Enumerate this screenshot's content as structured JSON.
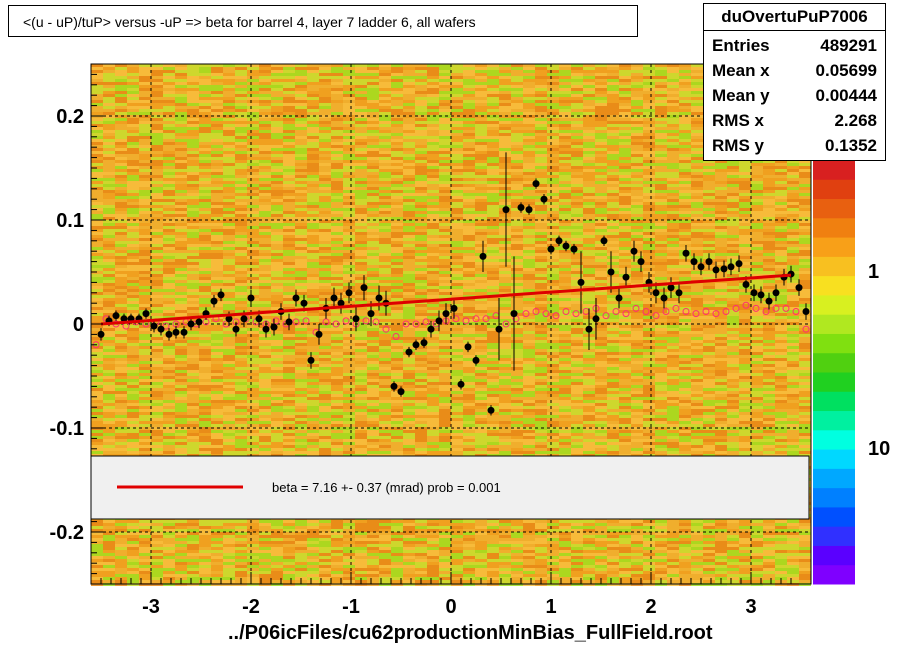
{
  "title": "<(u - uP)/tuP> versus  -uP => beta for barrel 4, layer 7 ladder 6, all wafers",
  "footer": "../P06icFiles/cu62productionMinBias_FullField.root",
  "stats": {
    "name": "duOvertuPuP7006",
    "rows": [
      {
        "key": "Entries",
        "value": "489291"
      },
      {
        "key": "Mean x",
        "value": "0.05699"
      },
      {
        "key": "Mean y",
        "value": "0.00444"
      },
      {
        "key": "RMS x",
        "value": "2.268"
      },
      {
        "key": "RMS y",
        "value": "0.1352"
      }
    ]
  },
  "legend": {
    "text": "beta =    7.16 +-  0.37 (mrad) prob = 0.001",
    "line_color": "#e00000"
  },
  "colors": {
    "heat_orange": "#f0a020",
    "heat_light_orange": "#f8c040",
    "heat_green": "#a0e020",
    "points": "#000000",
    "profile_markers": "#ff3070",
    "fit_line": "#dd0000"
  },
  "chart_data": {
    "type": "scatter",
    "xlim": [
      -3.6,
      3.6
    ],
    "ylim": [
      -0.25,
      0.25
    ],
    "x_ticks": [
      -3,
      -2,
      -1,
      0,
      1,
      2,
      3
    ],
    "x_tick_labels": [
      "-3",
      "-2",
      "-1",
      "0",
      "1",
      "2",
      "3"
    ],
    "y_ticks": [
      -0.2,
      -0.1,
      0,
      0.1,
      0.2
    ],
    "y_tick_labels": [
      "-0.2",
      "-0.1",
      "0",
      "0.1",
      "0.2"
    ],
    "z_ticks": [
      1,
      10
    ],
    "z_tick_labels": [
      "1",
      "10"
    ],
    "grid": true,
    "fit_line": {
      "x": [
        -3.5,
        3.4
      ],
      "y": [
        0.0,
        0.047
      ]
    },
    "points": [
      {
        "x": -3.5,
        "y": -0.01,
        "e": 0.006
      },
      {
        "x": -3.42,
        "y": 0.003,
        "e": 0.005
      },
      {
        "x": -3.35,
        "y": 0.008,
        "e": 0.005
      },
      {
        "x": -3.27,
        "y": 0.005,
        "e": 0.005
      },
      {
        "x": -3.2,
        "y": 0.005,
        "e": 0.005
      },
      {
        "x": -3.12,
        "y": 0.005,
        "e": 0.005
      },
      {
        "x": -3.05,
        "y": 0.01,
        "e": 0.005
      },
      {
        "x": -2.97,
        "y": -0.002,
        "e": 0.006
      },
      {
        "x": -2.9,
        "y": -0.005,
        "e": 0.006
      },
      {
        "x": -2.82,
        "y": -0.01,
        "e": 0.006
      },
      {
        "x": -2.75,
        "y": -0.008,
        "e": 0.006
      },
      {
        "x": -2.67,
        "y": -0.008,
        "e": 0.006
      },
      {
        "x": -2.6,
        "y": 0.0,
        "e": 0.006
      },
      {
        "x": -2.52,
        "y": 0.002,
        "e": 0.006
      },
      {
        "x": -2.45,
        "y": 0.01,
        "e": 0.006
      },
      {
        "x": -2.37,
        "y": 0.022,
        "e": 0.006
      },
      {
        "x": -2.3,
        "y": 0.028,
        "e": 0.006
      },
      {
        "x": -2.22,
        "y": 0.005,
        "e": 0.007
      },
      {
        "x": -2.15,
        "y": -0.005,
        "e": 0.007
      },
      {
        "x": -2.07,
        "y": 0.005,
        "e": 0.008
      },
      {
        "x": -2.0,
        "y": 0.025,
        "e": 0.008
      },
      {
        "x": -1.92,
        "y": 0.005,
        "e": 0.008
      },
      {
        "x": -1.85,
        "y": -0.005,
        "e": 0.008
      },
      {
        "x": -1.77,
        "y": -0.003,
        "e": 0.008
      },
      {
        "x": -1.7,
        "y": 0.012,
        "e": 0.008
      },
      {
        "x": -1.62,
        "y": 0.002,
        "e": 0.008
      },
      {
        "x": -1.55,
        "y": 0.025,
        "e": 0.008
      },
      {
        "x": -1.47,
        "y": 0.02,
        "e": 0.008
      },
      {
        "x": -1.4,
        "y": -0.035,
        "e": 0.008
      },
      {
        "x": -1.32,
        "y": -0.01,
        "e": 0.01
      },
      {
        "x": -1.25,
        "y": 0.015,
        "e": 0.01
      },
      {
        "x": -1.17,
        "y": 0.025,
        "e": 0.01
      },
      {
        "x": -1.1,
        "y": 0.02,
        "e": 0.01
      },
      {
        "x": -1.02,
        "y": 0.03,
        "e": 0.01
      },
      {
        "x": -0.95,
        "y": 0.005,
        "e": 0.012
      },
      {
        "x": -0.87,
        "y": 0.035,
        "e": 0.012
      },
      {
        "x": -0.8,
        "y": 0.01,
        "e": 0.012
      },
      {
        "x": -0.72,
        "y": 0.025,
        "e": 0.012
      },
      {
        "x": -0.65,
        "y": 0.02,
        "e": 0.012
      },
      {
        "x": -0.57,
        "y": -0.06,
        "e": 0.005
      },
      {
        "x": -0.5,
        "y": -0.065,
        "e": 0.005
      },
      {
        "x": -0.42,
        "y": -0.027,
        "e": 0.005
      },
      {
        "x": -0.35,
        "y": -0.02,
        "e": 0.005
      },
      {
        "x": -0.27,
        "y": -0.018,
        "e": 0.005
      },
      {
        "x": -0.2,
        "y": -0.005,
        "e": 0.008
      },
      {
        "x": -0.12,
        "y": 0.003,
        "e": 0.01
      },
      {
        "x": -0.05,
        "y": 0.01,
        "e": 0.01
      },
      {
        "x": 0.03,
        "y": 0.015,
        "e": 0.01
      },
      {
        "x": 0.1,
        "y": -0.058,
        "e": 0.005
      },
      {
        "x": 0.17,
        "y": -0.022,
        "e": 0.005
      },
      {
        "x": 0.25,
        "y": -0.035,
        "e": 0.005
      },
      {
        "x": 0.32,
        "y": 0.065,
        "e": 0.015
      },
      {
        "x": 0.4,
        "y": -0.083,
        "e": 0.005
      },
      {
        "x": 0.48,
        "y": -0.005,
        "e": 0.03
      },
      {
        "x": 0.55,
        "y": 0.11,
        "e": 0.055
      },
      {
        "x": 0.63,
        "y": 0.01,
        "e": 0.055
      },
      {
        "x": 0.7,
        "y": 0.112,
        "e": 0.005
      },
      {
        "x": 0.78,
        "y": 0.11,
        "e": 0.005
      },
      {
        "x": 0.85,
        "y": 0.135,
        "e": 0.005
      },
      {
        "x": 0.93,
        "y": 0.12,
        "e": 0.005
      },
      {
        "x": 1.0,
        "y": 0.072,
        "e": 0.005
      },
      {
        "x": 1.08,
        "y": 0.08,
        "e": 0.005
      },
      {
        "x": 1.15,
        "y": 0.075,
        "e": 0.005
      },
      {
        "x": 1.23,
        "y": 0.072,
        "e": 0.005
      },
      {
        "x": 1.3,
        "y": 0.04,
        "e": 0.03
      },
      {
        "x": 1.38,
        "y": -0.005,
        "e": 0.02
      },
      {
        "x": 1.45,
        "y": 0.005,
        "e": 0.02
      },
      {
        "x": 1.53,
        "y": 0.08,
        "e": 0.005
      },
      {
        "x": 1.6,
        "y": 0.05,
        "e": 0.02
      },
      {
        "x": 1.68,
        "y": 0.025,
        "e": 0.01
      },
      {
        "x": 1.75,
        "y": 0.045,
        "e": 0.01
      },
      {
        "x": 1.83,
        "y": 0.07,
        "e": 0.01
      },
      {
        "x": 1.9,
        "y": 0.06,
        "e": 0.01
      },
      {
        "x": 1.98,
        "y": 0.04,
        "e": 0.01
      },
      {
        "x": 2.05,
        "y": 0.03,
        "e": 0.01
      },
      {
        "x": 2.13,
        "y": 0.025,
        "e": 0.01
      },
      {
        "x": 2.2,
        "y": 0.035,
        "e": 0.01
      },
      {
        "x": 2.28,
        "y": 0.03,
        "e": 0.01
      },
      {
        "x": 2.35,
        "y": 0.068,
        "e": 0.008
      },
      {
        "x": 2.43,
        "y": 0.06,
        "e": 0.008
      },
      {
        "x": 2.5,
        "y": 0.055,
        "e": 0.008
      },
      {
        "x": 2.58,
        "y": 0.06,
        "e": 0.008
      },
      {
        "x": 2.65,
        "y": 0.052,
        "e": 0.008
      },
      {
        "x": 2.73,
        "y": 0.053,
        "e": 0.008
      },
      {
        "x": 2.8,
        "y": 0.055,
        "e": 0.008
      },
      {
        "x": 2.88,
        "y": 0.058,
        "e": 0.008
      },
      {
        "x": 2.95,
        "y": 0.038,
        "e": 0.008
      },
      {
        "x": 3.03,
        "y": 0.03,
        "e": 0.008
      },
      {
        "x": 3.1,
        "y": 0.028,
        "e": 0.008
      },
      {
        "x": 3.18,
        "y": 0.022,
        "e": 0.008
      },
      {
        "x": 3.25,
        "y": 0.03,
        "e": 0.008
      },
      {
        "x": 3.33,
        "y": 0.045,
        "e": 0.008
      },
      {
        "x": 3.4,
        "y": 0.048,
        "e": 0.008
      },
      {
        "x": 3.48,
        "y": 0.035,
        "e": 0.008
      },
      {
        "x": 3.55,
        "y": 0.012,
        "e": 0.008
      }
    ],
    "profile_markers": [
      {
        "x": -3.55,
        "y": -0.02
      },
      {
        "x": -3.45,
        "y": 0.005
      },
      {
        "x": -3.35,
        "y": 0.0
      },
      {
        "x": -3.25,
        "y": -0.002
      },
      {
        "x": -3.15,
        "y": 0.002
      },
      {
        "x": -3.05,
        "y": 0.0
      },
      {
        "x": -2.95,
        "y": 0.002
      },
      {
        "x": -2.85,
        "y": -0.002
      },
      {
        "x": -2.75,
        "y": 0.0
      },
      {
        "x": -2.65,
        "y": 0.002
      },
      {
        "x": -2.55,
        "y": 0.0
      },
      {
        "x": -2.45,
        "y": 0.002
      },
      {
        "x": -2.35,
        "y": 0.005
      },
      {
        "x": -2.25,
        "y": 0.0
      },
      {
        "x": -2.15,
        "y": 0.002
      },
      {
        "x": -2.05,
        "y": 0.005
      },
      {
        "x": -1.95,
        "y": 0.002
      },
      {
        "x": -1.85,
        "y": 0.0
      },
      {
        "x": -1.75,
        "y": 0.003
      },
      {
        "x": -1.65,
        "y": 0.0
      },
      {
        "x": -1.55,
        "y": 0.002
      },
      {
        "x": -1.45,
        "y": 0.003
      },
      {
        "x": -1.35,
        "y": -0.008
      },
      {
        "x": -1.25,
        "y": 0.002
      },
      {
        "x": -1.15,
        "y": 0.0
      },
      {
        "x": -1.05,
        "y": 0.003
      },
      {
        "x": -0.95,
        "y": 0.0
      },
      {
        "x": -0.85,
        "y": 0.003
      },
      {
        "x": -0.75,
        "y": 0.002
      },
      {
        "x": -0.65,
        "y": -0.005
      },
      {
        "x": -0.55,
        "y": -0.012
      },
      {
        "x": -0.45,
        "y": 0.0
      },
      {
        "x": -0.35,
        "y": 0.0
      },
      {
        "x": -0.25,
        "y": 0.002
      },
      {
        "x": -0.15,
        "y": 0.0
      },
      {
        "x": -0.05,
        "y": 0.003
      },
      {
        "x": 0.05,
        "y": 0.005
      },
      {
        "x": 0.15,
        "y": 0.003
      },
      {
        "x": 0.25,
        "y": 0.005
      },
      {
        "x": 0.35,
        "y": 0.005
      },
      {
        "x": 0.45,
        "y": 0.008
      },
      {
        "x": 0.55,
        "y": 0.0
      },
      {
        "x": 0.65,
        "y": 0.005
      },
      {
        "x": 0.75,
        "y": 0.01
      },
      {
        "x": 0.85,
        "y": 0.012
      },
      {
        "x": 0.95,
        "y": 0.01
      },
      {
        "x": 1.05,
        "y": 0.008
      },
      {
        "x": 1.15,
        "y": 0.012
      },
      {
        "x": 1.25,
        "y": 0.01
      },
      {
        "x": 1.35,
        "y": 0.012
      },
      {
        "x": 1.45,
        "y": 0.015
      },
      {
        "x": 1.55,
        "y": 0.008
      },
      {
        "x": 1.65,
        "y": 0.012
      },
      {
        "x": 1.75,
        "y": 0.01
      },
      {
        "x": 1.85,
        "y": 0.015
      },
      {
        "x": 1.95,
        "y": 0.012
      },
      {
        "x": 2.05,
        "y": 0.008
      },
      {
        "x": 2.15,
        "y": 0.012
      },
      {
        "x": 2.25,
        "y": 0.015
      },
      {
        "x": 2.35,
        "y": 0.012
      },
      {
        "x": 2.45,
        "y": 0.01
      },
      {
        "x": 2.55,
        "y": 0.012
      },
      {
        "x": 2.65,
        "y": 0.01
      },
      {
        "x": 2.75,
        "y": 0.012
      },
      {
        "x": 2.85,
        "y": 0.015
      },
      {
        "x": 2.95,
        "y": 0.018
      },
      {
        "x": 3.05,
        "y": 0.015
      },
      {
        "x": 3.15,
        "y": 0.012
      },
      {
        "x": 3.25,
        "y": 0.015
      },
      {
        "x": 3.35,
        "y": 0.015
      },
      {
        "x": 3.45,
        "y": 0.012
      },
      {
        "x": 3.55,
        "y": -0.005
      }
    ]
  }
}
